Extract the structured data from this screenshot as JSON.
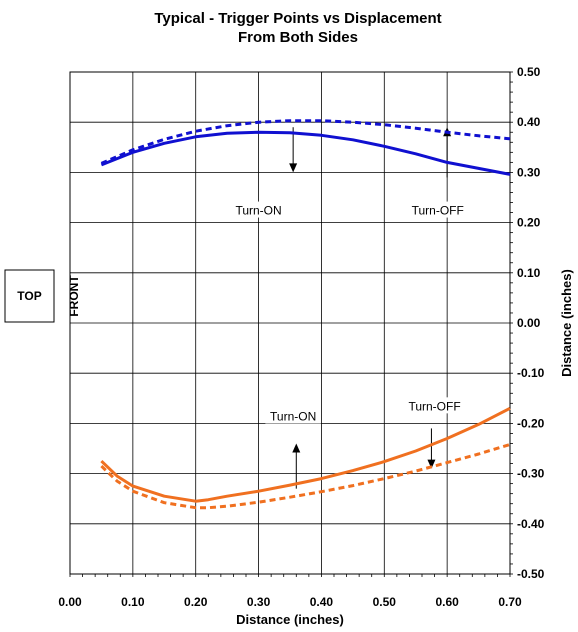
{
  "chart_data": {
    "type": "line",
    "title": "Typical - Trigger Points vs Displacement",
    "subtitle": "From Both Sides",
    "xlabel": "Distance (inches)",
    "ylabel": "Distance (inches)",
    "xlim": [
      0,
      0.7
    ],
    "ylim": [
      -0.5,
      0.5
    ],
    "x_ticks": [
      "0.00",
      "0.10",
      "0.20",
      "0.30",
      "0.40",
      "0.50",
      "0.60",
      "0.70"
    ],
    "y_ticks": [
      "0.50",
      "0.40",
      "0.30",
      "0.20",
      "0.10",
      "0.00",
      "-0.10",
      "-0.20",
      "-0.30",
      "-0.40",
      "-0.50"
    ],
    "y_axis_side": "right",
    "grid": true,
    "series": [
      {
        "color": "#1010d0",
        "style": "solid",
        "x": [
          0.05,
          0.1,
          0.15,
          0.2,
          0.25,
          0.3,
          0.35,
          0.4,
          0.45,
          0.5,
          0.55,
          0.6,
          0.65,
          0.7
        ],
        "y": [
          0.315,
          0.34,
          0.358,
          0.371,
          0.378,
          0.38,
          0.379,
          0.374,
          0.365,
          0.352,
          0.337,
          0.32,
          0.308,
          0.296
        ]
      },
      {
        "color": "#1010d0",
        "style": "dashed",
        "x": [
          0.05,
          0.1,
          0.15,
          0.2,
          0.25,
          0.3,
          0.35,
          0.4,
          0.45,
          0.5,
          0.55,
          0.6,
          0.65,
          0.7
        ],
        "y": [
          0.318,
          0.345,
          0.366,
          0.382,
          0.393,
          0.4,
          0.403,
          0.403,
          0.4,
          0.395,
          0.388,
          0.38,
          0.373,
          0.367
        ]
      },
      {
        "color": "#f07020",
        "style": "solid",
        "x": [
          0.05,
          0.075,
          0.1,
          0.15,
          0.2,
          0.22,
          0.25,
          0.3,
          0.35,
          0.4,
          0.45,
          0.5,
          0.55,
          0.6,
          0.65,
          0.7
        ],
        "y": [
          -0.275,
          -0.305,
          -0.325,
          -0.345,
          -0.355,
          -0.352,
          -0.345,
          -0.335,
          -0.323,
          -0.31,
          -0.294,
          -0.276,
          -0.255,
          -0.23,
          -0.202,
          -0.17
        ]
      },
      {
        "color": "#f07020",
        "style": "dashed",
        "x": [
          0.05,
          0.075,
          0.1,
          0.15,
          0.2,
          0.22,
          0.25,
          0.3,
          0.35,
          0.4,
          0.45,
          0.5,
          0.55,
          0.6,
          0.65,
          0.7
        ],
        "y": [
          -0.285,
          -0.315,
          -0.335,
          -0.358,
          -0.368,
          -0.368,
          -0.365,
          -0.357,
          -0.347,
          -0.336,
          -0.324,
          -0.31,
          -0.295,
          -0.278,
          -0.261,
          -0.242
        ]
      }
    ],
    "annotations": [
      {
        "text": "Turn-ON",
        "x": 0.3,
        "y": 0.22,
        "arrow": {
          "x": 0.355,
          "from": 0.39,
          "to": 0.3
        }
      },
      {
        "text": "Turn-OFF",
        "x": 0.585,
        "y": 0.22,
        "arrow": {
          "x": 0.6,
          "from": 0.29,
          "to": 0.39
        }
      },
      {
        "text": "Turn-ON",
        "x": 0.355,
        "y": -0.19,
        "arrow": {
          "x": 0.36,
          "from": -0.33,
          "to": -0.24
        }
      },
      {
        "text": "Turn-OFF",
        "x": 0.58,
        "y": -0.17,
        "arrow": {
          "x": 0.575,
          "from": -0.21,
          "to": -0.29
        }
      }
    ],
    "side_box_label": "TOP",
    "side_label": "FRONT"
  }
}
